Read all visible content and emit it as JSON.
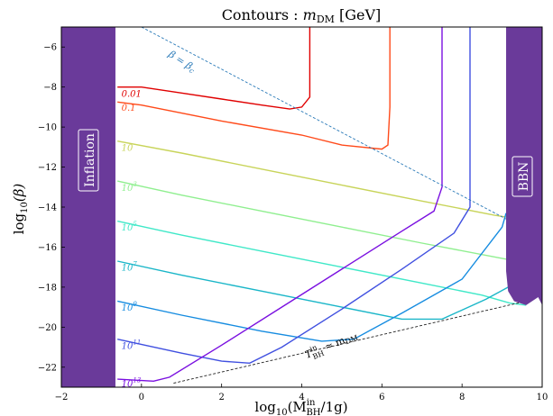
{
  "chart_data": {
    "type": "line",
    "title": "Contours : m_DM [GeV]",
    "xlabel": "log10(M_BH^in/1g)",
    "ylabel": "log10(β)",
    "xlim": [
      -2,
      10
    ],
    "ylim": [
      -23,
      -5
    ],
    "xticks": [
      "−2",
      "0",
      "2",
      "4",
      "6",
      "8",
      "10"
    ],
    "yticks": [
      "−22",
      "−20",
      "−18",
      "−16",
      "−14",
      "−12",
      "−10",
      "−8",
      "−6"
    ],
    "regions": [
      {
        "name": "Inflation",
        "x_range": [
          -2,
          -0.65
        ],
        "color": "#6a3a9a"
      },
      {
        "name": "BBN",
        "x_range": [
          9.1,
          10
        ],
        "color": "#6a3a9a"
      }
    ],
    "reference_lines": [
      {
        "label": "β = β_c",
        "points": [
          [
            0,
            -5
          ],
          [
            9.2,
            -14.7
          ]
        ],
        "color": "#2a7ab8"
      },
      {
        "label": "T_BH^in ≈ m_DM",
        "points": [
          [
            0.8,
            -22.8
          ],
          [
            9.6,
            -18.7
          ]
        ],
        "color": "#222222"
      }
    ],
    "series": [
      {
        "name": "0.01",
        "color": "#e00000",
        "points": [
          [
            -0.6,
            -8.0
          ],
          [
            0,
            -8.0
          ],
          [
            1,
            -8.3
          ],
          [
            2,
            -8.6
          ],
          [
            3,
            -8.9
          ],
          [
            3.7,
            -9.1
          ],
          [
            4.0,
            -9.0
          ],
          [
            4.2,
            -8.5
          ],
          [
            4.2,
            -5
          ]
        ]
      },
      {
        "name": "0.1",
        "color": "#ff4a1a",
        "points": [
          [
            -0.6,
            -8.75
          ],
          [
            0,
            -8.9
          ],
          [
            2,
            -9.7
          ],
          [
            4,
            -10.4
          ],
          [
            5,
            -10.9
          ],
          [
            6,
            -11.1
          ],
          [
            6.15,
            -10.9
          ],
          [
            6.2,
            -9
          ],
          [
            6.2,
            -5
          ]
        ]
      },
      {
        "name": "10",
        "color": "#c8d45a",
        "points": [
          [
            -0.6,
            -10.7
          ],
          [
            1,
            -11.3
          ],
          [
            3,
            -12.1
          ],
          [
            5,
            -12.9
          ],
          [
            7,
            -13.7
          ],
          [
            8.8,
            -14.4
          ],
          [
            9.1,
            -14.5
          ]
        ]
      },
      {
        "name": "10^3",
        "color": "#90ef90",
        "points": [
          [
            -0.6,
            -12.7
          ],
          [
            1,
            -13.4
          ],
          [
            3,
            -14.2
          ],
          [
            5,
            -15.0
          ],
          [
            7,
            -15.8
          ],
          [
            9.1,
            -16.6
          ]
        ]
      },
      {
        "name": "10^5",
        "color": "#40e8c8",
        "points": [
          [
            -0.6,
            -14.7
          ],
          [
            1,
            -15.4
          ],
          [
            3,
            -16.2
          ],
          [
            5,
            -17.0
          ],
          [
            7,
            -17.8
          ],
          [
            8.5,
            -18.4
          ],
          [
            9.2,
            -18.8
          ],
          [
            9.6,
            -18.9
          ]
        ]
      },
      {
        "name": "10^7",
        "color": "#1ab6c8",
        "points": [
          [
            -0.6,
            -16.7
          ],
          [
            1,
            -17.4
          ],
          [
            3,
            -18.2
          ],
          [
            5,
            -19.0
          ],
          [
            6.5,
            -19.6
          ],
          [
            7.5,
            -19.6
          ],
          [
            8.6,
            -18.6
          ],
          [
            9.8,
            -17.3
          ]
        ]
      },
      {
        "name": "10^9",
        "color": "#168ce0",
        "points": [
          [
            -0.6,
            -18.7
          ],
          [
            1,
            -19.4
          ],
          [
            3,
            -20.2
          ],
          [
            4.5,
            -20.7
          ],
          [
            5.3,
            -20.6
          ],
          [
            6.5,
            -19.3
          ],
          [
            8,
            -17.6
          ],
          [
            9.0,
            -15.0
          ],
          [
            9.1,
            -14.3
          ]
        ]
      },
      {
        "name": "10^11",
        "color": "#4050e0",
        "points": [
          [
            -0.6,
            -20.6
          ],
          [
            1,
            -21.3
          ],
          [
            2.0,
            -21.7
          ],
          [
            2.7,
            -21.8
          ],
          [
            3.5,
            -21.0
          ],
          [
            5,
            -19.1
          ],
          [
            6.5,
            -17.1
          ],
          [
            7.8,
            -15.3
          ],
          [
            8.2,
            -14.0
          ],
          [
            8.2,
            -5
          ]
        ]
      },
      {
        "name": "10^13",
        "color": "#7a10e0",
        "points": [
          [
            -0.6,
            -22.6
          ],
          [
            0.3,
            -22.7
          ],
          [
            0.7,
            -22.5
          ],
          [
            2,
            -20.9
          ],
          [
            3.5,
            -19.0
          ],
          [
            5,
            -17.1
          ],
          [
            6.5,
            -15.2
          ],
          [
            7.3,
            -14.2
          ],
          [
            7.5,
            -13.0
          ],
          [
            7.5,
            -5
          ]
        ]
      }
    ],
    "annotations": [
      {
        "text": "Inflation",
        "region": "left"
      },
      {
        "text": "BBN",
        "region": "right"
      }
    ]
  },
  "labels": {
    "title_main": "Contours : ",
    "title_var": "m",
    "title_sub": "DM",
    "title_unit": " [GeV]",
    "ylabel_main": "log",
    "ylabel_sub": "10",
    "ylabel_arg": "(β)",
    "xlabel_main": "log",
    "xlabel_sub": "10",
    "xlabel_arg_open": "(M",
    "xlabel_arg_sub": "BH",
    "xlabel_arg_sup": "in",
    "xlabel_arg_close": "/1g)",
    "inflation": "Inflation",
    "bbn": "BBN",
    "beta_c": "β = β",
    "beta_c_sub": "c",
    "tbh_T": "T",
    "tbh_sup": "in",
    "tbh_sub": "BH",
    "tbh_rest": " ≈ m",
    "tbh_rest_sub": "DM",
    "series_labels": [
      {
        "base": "0.01",
        "exp": ""
      },
      {
        "base": "0.1",
        "exp": ""
      },
      {
        "base": "10",
        "exp": ""
      },
      {
        "base": "10",
        "exp": "3"
      },
      {
        "base": "10",
        "exp": "5"
      },
      {
        "base": "10",
        "exp": "7"
      },
      {
        "base": "10",
        "exp": "9"
      },
      {
        "base": "10",
        "exp": "11"
      },
      {
        "base": "10",
        "exp": "13"
      }
    ]
  }
}
